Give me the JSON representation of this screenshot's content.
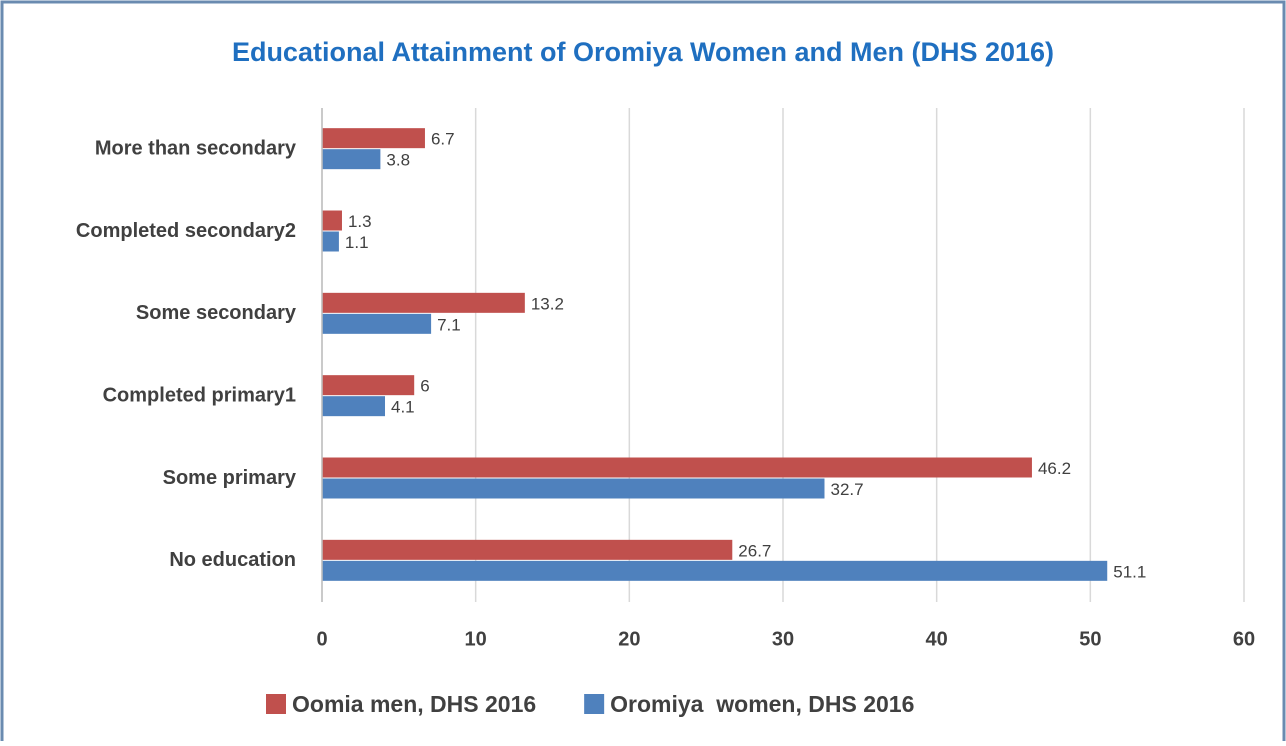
{
  "chart_data": {
    "type": "bar",
    "orientation": "horizontal",
    "title": "Educational Attainment of Oromiya Women and Men (DHS 2016)",
    "categories": [
      "More than secondary",
      "Completed secondary2",
      "Some secondary",
      "Completed primary1",
      "Some primary",
      "No education"
    ],
    "series": [
      {
        "name": "Oomia men, DHS 2016",
        "color": "#c0504d",
        "values": [
          6.7,
          1.3,
          13.2,
          6,
          46.2,
          26.7
        ]
      },
      {
        "name": "Oromiya  women, DHS 2016",
        "color": "#4f81bd",
        "values": [
          3.8,
          1.1,
          7.1,
          4.1,
          32.7,
          51.1
        ]
      }
    ],
    "xlim": [
      0,
      60
    ],
    "xticks": [
      0,
      10,
      20,
      30,
      40,
      50,
      60
    ],
    "grid": true,
    "legend": "bottom"
  }
}
